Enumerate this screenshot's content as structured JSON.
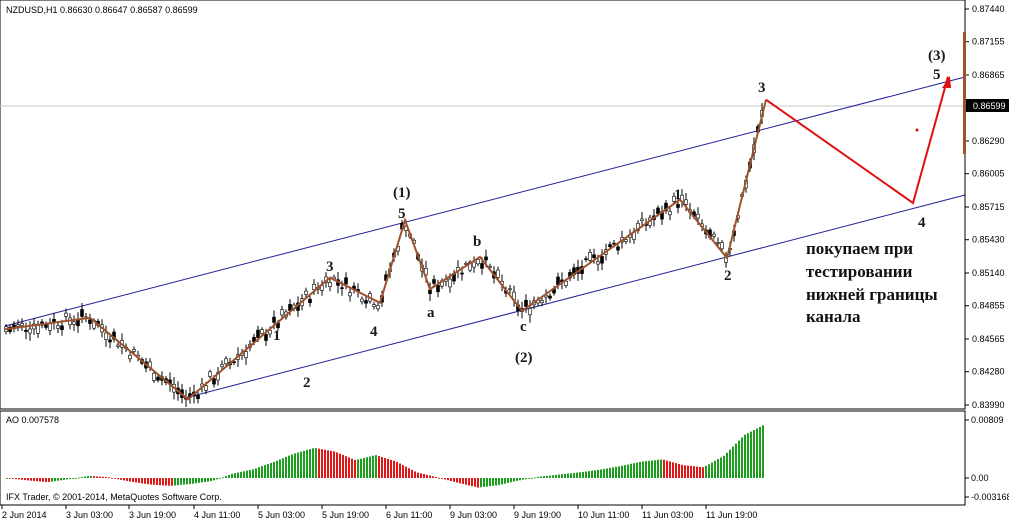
{
  "window": {
    "title": "NZDUSD,H1",
    "ohlc": "0.86630 0.86647 0.86587 0.86599",
    "indicator_title": "AO 0.007578",
    "copyright": "IFX Trader, © 2001-2014, MetaQuotes Software Corp."
  },
  "price_axis": {
    "ticks": [
      "0.87440",
      "0.87155",
      "0.86865",
      "0.86599",
      "0.86290",
      "0.86005",
      "0.85715",
      "0.85430",
      "0.85140",
      "0.84855",
      "0.84565",
      "0.84280",
      "0.83990"
    ],
    "current_price": "0.86599"
  },
  "ao_axis": {
    "ticks": [
      "0.00809",
      "0.00",
      "-0.003168"
    ]
  },
  "time_axis": {
    "labels": [
      "2 Jun 2014",
      "3 Jun 03:00",
      "3 Jun 19:00",
      "4 Jun 11:00",
      "5 Jun 03:00",
      "5 Jun 19:00",
      "6 Jun 11:00",
      "9 Jun 03:00",
      "9 Jun 19:00",
      "10 Jun 11:00",
      "11 Jun 03:00",
      "11 Jun 19:00"
    ]
  },
  "annotations": {
    "wave1_top": "(1)",
    "wave1_top_sub": "5",
    "wave3_top": "(3)",
    "wave3_top_sub": "5",
    "wave2_bottom": "(2)",
    "labels": [
      "1",
      "2",
      "3",
      "4",
      "a",
      "b",
      "c",
      "1",
      "2",
      "3",
      "4"
    ],
    "note_lines": [
      "покупаем при",
      "тестировании",
      "нижней границы",
      "канала"
    ]
  },
  "colors": {
    "background": "#ffffff",
    "candle": "#000000",
    "channel": "#1f1f9a",
    "wave_line": "#a0522d",
    "projection": "#e01010",
    "ao_up": "#1e9e1e",
    "ao_down": "#e01818",
    "grid_line": "#c8c8c8"
  },
  "chart_data": {
    "type": "candlestick",
    "symbol": "NZDUSD",
    "timeframe": "H1",
    "ylim": [
      0.8399,
      0.8744
    ],
    "current_price": 0.86599,
    "wave_path": [
      0.8465,
      0.8475,
      0.8404,
      0.851,
      0.8488,
      0.856,
      0.85,
      0.8528,
      0.8481,
      0.8578,
      0.8527,
      0.8665
    ],
    "projection_path": [
      0.8665,
      0.8575,
      0.8685
    ],
    "ao": {
      "ylim": [
        -0.003168,
        0.00809
      ],
      "values": [
        0.0,
        -0.0004,
        -0.0007,
        -0.0002,
        0.0003,
        0.0001,
        -0.0006,
        -0.0011,
        -0.0013,
        -0.001,
        -0.0005,
        0.0006,
        0.0012,
        0.0022,
        0.0034,
        0.0042,
        0.0037,
        0.0025,
        0.0032,
        0.0023,
        0.0008,
        0.0001,
        -0.0008,
        -0.0016,
        -0.0012,
        -0.0004,
        0.0002,
        0.0005,
        0.0008,
        0.0012,
        0.0017,
        0.0023,
        0.0026,
        0.0018,
        0.0015,
        0.0031,
        0.006,
        0.0075
      ]
    }
  }
}
